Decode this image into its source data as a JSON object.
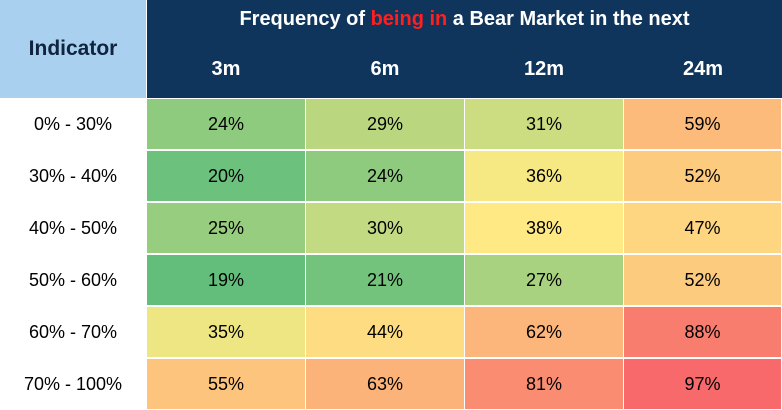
{
  "chart_data": {
    "type": "heatmap",
    "title_parts": [
      "Frequency of ",
      "being in",
      " a Bear Market in the next"
    ],
    "corner_label": "Indicator",
    "columns": [
      "3m",
      "6m",
      "12m",
      "24m"
    ],
    "rows": [
      "0% - 30%",
      "30% - 40%",
      "40% - 50%",
      "50% - 60%",
      "60% - 70%",
      "70% - 100%"
    ],
    "value_labels": [
      [
        "24%",
        "29%",
        "31%",
        "59%"
      ],
      [
        "20%",
        "24%",
        "36%",
        "52%"
      ],
      [
        "25%",
        "30%",
        "38%",
        "47%"
      ],
      [
        "19%",
        "21%",
        "27%",
        "52%"
      ],
      [
        "35%",
        "44%",
        "62%",
        "88%"
      ],
      [
        "55%",
        "63%",
        "81%",
        "97%"
      ]
    ],
    "values": [
      [
        24,
        29,
        31,
        59
      ],
      [
        20,
        24,
        36,
        52
      ],
      [
        25,
        30,
        38,
        47
      ],
      [
        19,
        21,
        27,
        52
      ],
      [
        35,
        44,
        62,
        88
      ],
      [
        55,
        63,
        81,
        97
      ]
    ],
    "colors": {
      "header_bg": "#10355c",
      "corner_bg": "#a9d0ee",
      "title_highlight": "#ff1f1f",
      "scale_low": "#63be7b",
      "scale_mid": "#ffeb84",
      "scale_high": "#f8696b"
    }
  }
}
